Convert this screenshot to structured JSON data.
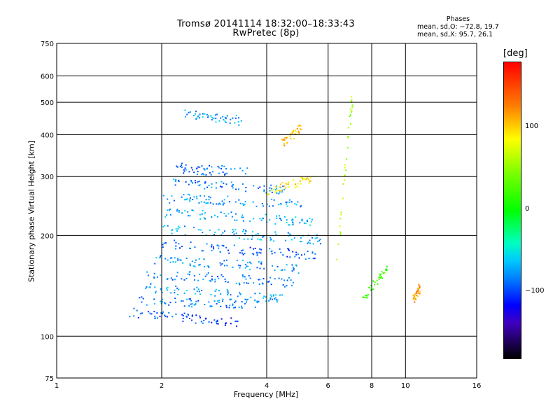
{
  "title": {
    "line1": "Tromsø 20141114 18:32:00–18:33:43",
    "line2": "RwPretec (8p)"
  },
  "stats": {
    "header": "Phases",
    "line_o": "mean, sd,O: −72.8, 19.7",
    "line_x": "mean, sd,X:  95.7, 26.1"
  },
  "colorbar": {
    "title": "[deg]",
    "ticks": [
      {
        "label": "100",
        "value": 100
      },
      {
        "label": "0",
        "value": 0
      },
      {
        "label": "−100",
        "value": -100
      }
    ],
    "range": [
      -180,
      180
    ]
  },
  "chart_data": {
    "type": "scatter",
    "title": "Tromsø 20141114 18:32:00–18:33:43 RwPretec (8p)",
    "xlabel": "Frequency [MHz]",
    "ylabel": "Stationary phase Virtual Height [km]",
    "x_scale": "log",
    "y_scale": "log",
    "xlim": [
      1,
      16
    ],
    "ylim": [
      75,
      750
    ],
    "x_ticks": [
      {
        "label": "1",
        "value": 1
      },
      {
        "label": "2",
        "value": 2
      },
      {
        "label": "4",
        "value": 4
      },
      {
        "label": "6",
        "value": 6
      },
      {
        "label": "8",
        "value": 8
      },
      {
        "label": "10",
        "value": 10
      },
      {
        "label": "16",
        "value": 16
      }
    ],
    "y_ticks": [
      {
        "label": "75",
        "value": 75
      },
      {
        "label": "100",
        "value": 100
      },
      {
        "label": "200",
        "value": 200
      },
      {
        "label": "300",
        "value": 300
      },
      {
        "label": "400",
        "value": 400
      },
      {
        "label": "500",
        "value": 500
      },
      {
        "label": "600",
        "value": 600
      },
      {
        "label": "750",
        "value": 750
      }
    ],
    "grid": true,
    "color_scale": "phase (deg)",
    "traces": [
      {
        "f_start": 1.6,
        "f_end": 3.3,
        "h_start": 118,
        "h_end": 110,
        "phase": -95
      },
      {
        "f_start": 1.7,
        "f_end": 3.8,
        "h_start": 128,
        "h_end": 125,
        "phase": -80
      },
      {
        "f_start": 1.8,
        "f_end": 4.5,
        "h_start": 140,
        "h_end": 130,
        "phase": -70
      },
      {
        "f_start": 1.8,
        "f_end": 4.8,
        "h_start": 155,
        "h_end": 145,
        "phase": -85
      },
      {
        "f_start": 1.9,
        "f_end": 5.0,
        "h_start": 170,
        "h_end": 160,
        "phase": -75
      },
      {
        "f_start": 2.0,
        "f_end": 5.5,
        "h_start": 190,
        "h_end": 175,
        "phase": -90
      },
      {
        "f_start": 2.0,
        "f_end": 5.8,
        "h_start": 210,
        "h_end": 195,
        "phase": -70
      },
      {
        "f_start": 2.0,
        "f_end": 5.5,
        "h_start": 235,
        "h_end": 220,
        "phase": -65
      },
      {
        "f_start": 2.0,
        "f_end": 5.0,
        "h_start": 260,
        "h_end": 250,
        "phase": -75
      },
      {
        "f_start": 2.1,
        "f_end": 4.5,
        "h_start": 290,
        "h_end": 275,
        "phase": -80
      },
      {
        "f_start": 2.2,
        "f_end": 3.5,
        "h_start": 320,
        "h_end": 310,
        "phase": -85
      },
      {
        "f_start": 2.3,
        "f_end": 3.4,
        "h_start": 470,
        "h_end": 440,
        "phase": -70
      },
      {
        "f_start": 4.0,
        "f_end": 5.5,
        "h_start": 270,
        "h_end": 300,
        "phase": 95
      },
      {
        "f_start": 4.4,
        "f_end": 5.0,
        "h_start": 380,
        "h_end": 420,
        "phase": 110
      },
      {
        "f_start": 6.3,
        "f_end": 7.0,
        "h_start": 160,
        "h_end": 520,
        "phase": 60
      },
      {
        "f_start": 7.5,
        "f_end": 8.8,
        "h_start": 130,
        "h_end": 160,
        "phase": 20
      },
      {
        "f_start": 10.5,
        "f_end": 11.0,
        "h_start": 130,
        "h_end": 140,
        "phase": 120
      }
    ]
  }
}
